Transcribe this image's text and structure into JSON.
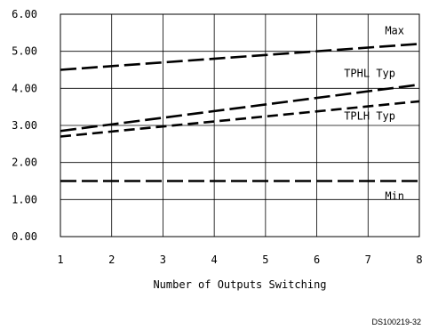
{
  "chart_data": {
    "type": "line",
    "xlabel": "Number of Outputs Switching",
    "ylabel": "",
    "xlim": [
      1,
      8
    ],
    "ylim": [
      0,
      6
    ],
    "x_ticks": [
      "1",
      "2",
      "3",
      "4",
      "5",
      "6",
      "7",
      "8"
    ],
    "y_ticks": [
      "0.00",
      "1.00",
      "2.00",
      "3.00",
      "4.00",
      "5.00",
      "6.00"
    ],
    "grid": true,
    "series": [
      {
        "name": "Max",
        "x": [
          1,
          8
        ],
        "y": [
          4.5,
          5.2
        ],
        "dash": "long"
      },
      {
        "name": "TPHL Typ",
        "x": [
          1,
          8
        ],
        "y": [
          2.85,
          4.1
        ],
        "dash": "long"
      },
      {
        "name": "TPLH Typ",
        "x": [
          1,
          8
        ],
        "y": [
          2.7,
          3.65
        ],
        "dash": "short"
      },
      {
        "name": "Min",
        "x": [
          1,
          8
        ],
        "y": [
          1.5,
          1.5
        ],
        "dash": "long"
      }
    ]
  },
  "footer": {
    "code": "DS100219-32"
  }
}
